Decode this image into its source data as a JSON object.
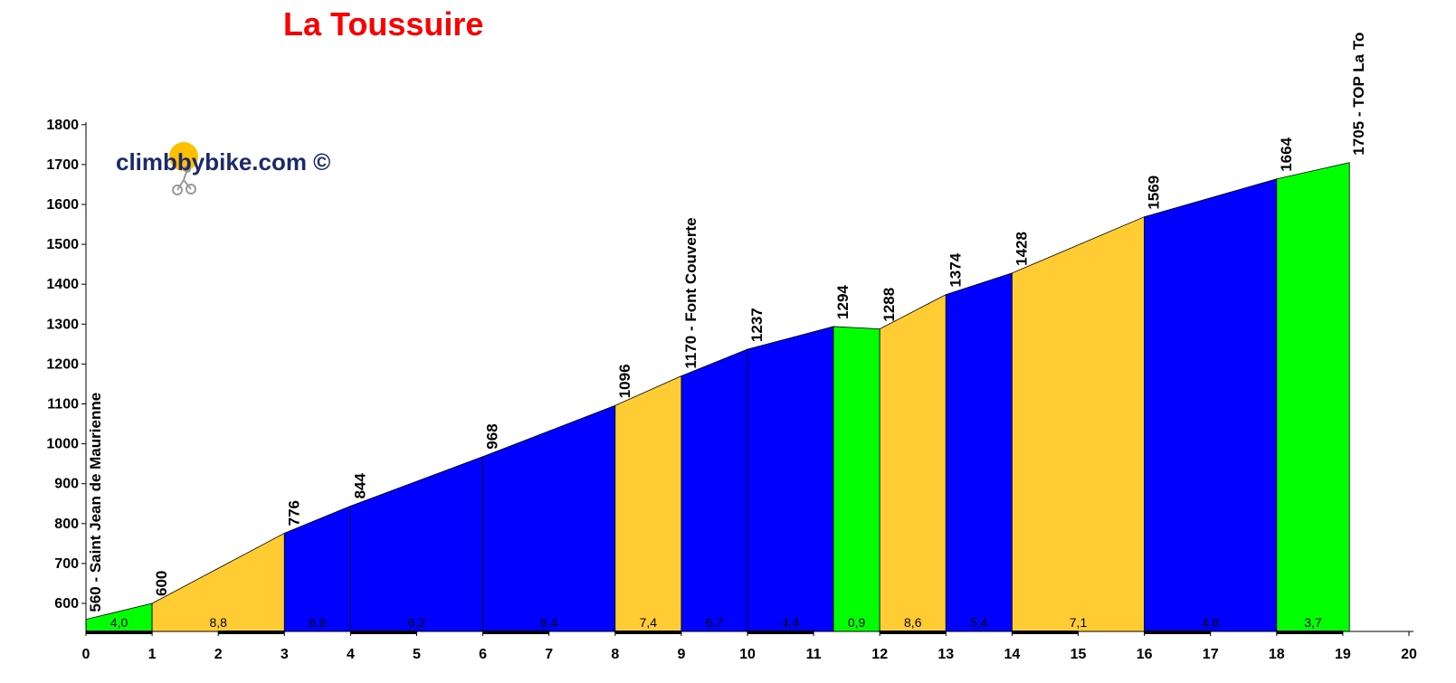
{
  "chart_data": {
    "type": "area",
    "title": "La Toussuire",
    "watermark": "climbbybike.com ©",
    "xlabel": "",
    "ylabel": "",
    "xlim": [
      0,
      20
    ],
    "ylim": [
      520,
      1800
    ],
    "x_ticks": [
      0,
      1,
      2,
      3,
      4,
      5,
      6,
      7,
      8,
      9,
      10,
      11,
      12,
      13,
      14,
      15,
      16,
      17,
      18,
      19,
      20
    ],
    "y_ticks": [
      600,
      700,
      800,
      900,
      1000,
      1100,
      1200,
      1300,
      1400,
      1500,
      1600,
      1700,
      1800
    ],
    "grid": false,
    "legend": "none",
    "profile_points": [
      {
        "km": 0,
        "elevation": 560,
        "label": "560 - Saint Jean de Maurienne"
      },
      {
        "km": 1,
        "elevation": 600,
        "label": "600"
      },
      {
        "km": 3,
        "elevation": 776,
        "label": "776"
      },
      {
        "km": 4,
        "elevation": 844,
        "label": "844"
      },
      {
        "km": 6,
        "elevation": 968,
        "label": "968"
      },
      {
        "km": 8,
        "elevation": 1096,
        "label": "1096"
      },
      {
        "km": 9,
        "elevation": 1170,
        "label": "1170 - Font Couverte"
      },
      {
        "km": 10,
        "elevation": 1237,
        "label": "1237"
      },
      {
        "km": 11.3,
        "elevation": 1294,
        "label": "1294"
      },
      {
        "km": 12,
        "elevation": 1288,
        "label": "1288"
      },
      {
        "km": 13,
        "elevation": 1374,
        "label": "1374"
      },
      {
        "km": 14,
        "elevation": 1428,
        "label": "1428"
      },
      {
        "km": 16,
        "elevation": 1569,
        "label": "1569"
      },
      {
        "km": 18,
        "elevation": 1664,
        "label": "1664"
      },
      {
        "km": 19.1,
        "elevation": 1705,
        "label": "1705 - TOP La To"
      }
    ],
    "segments": [
      {
        "from_km": 0,
        "to_km": 1,
        "gradient": "4,0",
        "color": "#00ff00"
      },
      {
        "from_km": 1,
        "to_km": 3,
        "gradient": "8,8",
        "color": "#ffcc33"
      },
      {
        "from_km": 3,
        "to_km": 4,
        "gradient": "6,8",
        "color": "#0000ff"
      },
      {
        "from_km": 4,
        "to_km": 6,
        "gradient": "6,2",
        "color": "#0000ff"
      },
      {
        "from_km": 6,
        "to_km": 8,
        "gradient": "6,4",
        "color": "#0000ff"
      },
      {
        "from_km": 8,
        "to_km": 9,
        "gradient": "7,4",
        "color": "#ffcc33"
      },
      {
        "from_km": 9,
        "to_km": 10,
        "gradient": "6,7",
        "color": "#0000ff"
      },
      {
        "from_km": 10,
        "to_km": 11.3,
        "gradient": "4,4",
        "color": "#0000ff"
      },
      {
        "from_km": 11.3,
        "to_km": 12,
        "gradient": "0,9",
        "color": "#00ff00"
      },
      {
        "from_km": 12,
        "to_km": 13,
        "gradient": "8,6",
        "color": "#ffcc33"
      },
      {
        "from_km": 13,
        "to_km": 14,
        "gradient": "5,4",
        "color": "#0000ff"
      },
      {
        "from_km": 14,
        "to_km": 16,
        "gradient": "7,1",
        "color": "#ffcc33"
      },
      {
        "from_km": 16,
        "to_km": 18,
        "gradient": "4,8",
        "color": "#0000ff"
      },
      {
        "from_km": 18,
        "to_km": 19.1,
        "gradient": "3,7",
        "color": "#00ff00"
      }
    ]
  }
}
